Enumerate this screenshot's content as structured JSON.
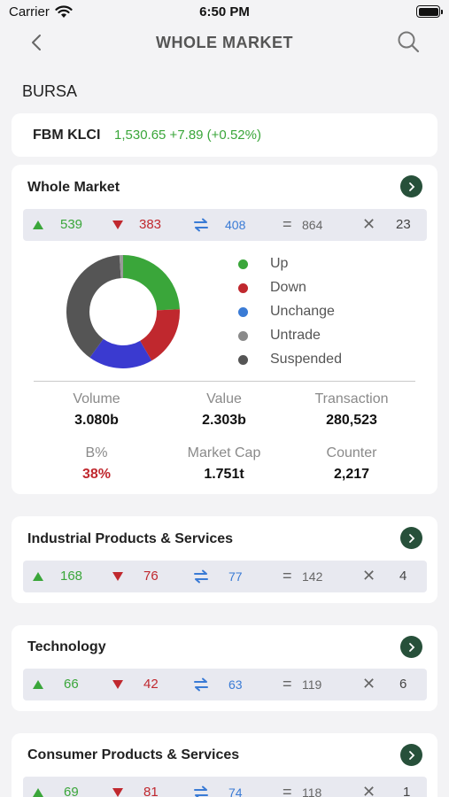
{
  "status_bar": {
    "carrier": "Carrier",
    "time": "6:50 PM"
  },
  "nav": {
    "title": "WHOLE MARKET"
  },
  "exchange": "BURSA",
  "index": {
    "name": "FBM KLCI",
    "value": "1,530.65 +7.89 (+0.52%)"
  },
  "colors": {
    "up": "#3aa63a",
    "down": "#c0282e",
    "unchange": "#3a7bd5",
    "untrade": "#8a8a8a",
    "suspended": "#555555",
    "go_button": "#27503a"
  },
  "whole_market": {
    "title": "Whole Market",
    "stats": {
      "up": "539",
      "down": "383",
      "unchange": "408",
      "untrade": "864",
      "suspended": "23"
    },
    "legend": [
      "Up",
      "Down",
      "Unchange",
      "Untrade",
      "Suspended"
    ],
    "metrics": {
      "volume_label": "Volume",
      "volume": "3.080b",
      "value_label": "Value",
      "value": "2.303b",
      "transaction_label": "Transaction",
      "transaction": "280,523",
      "b_label": "B%",
      "b": "38%",
      "market_cap_label": "Market Cap",
      "market_cap": "1.751t",
      "counter_label": "Counter",
      "counter": "2,217"
    }
  },
  "chart_data": {
    "type": "pie",
    "variant": "donut",
    "categories": [
      "Up",
      "Down",
      "Unchange",
      "Untrade",
      "Suspended"
    ],
    "values": [
      539,
      383,
      408,
      864,
      23
    ],
    "colors": [
      "#3aa63a",
      "#c0282e",
      "#3a3ad0",
      "#555555",
      "#9a9a9a"
    ]
  },
  "sectors": [
    {
      "title": "Industrial Products & Services",
      "up": "168",
      "down": "76",
      "unchange": "77",
      "untrade": "142",
      "suspended": "4"
    },
    {
      "title": "Technology",
      "up": "66",
      "down": "42",
      "unchange": "63",
      "untrade": "119",
      "suspended": "6"
    },
    {
      "title": "Consumer Products & Services",
      "up": "69",
      "down": "81",
      "unchange": "74",
      "untrade": "118",
      "suspended": "1"
    }
  ]
}
